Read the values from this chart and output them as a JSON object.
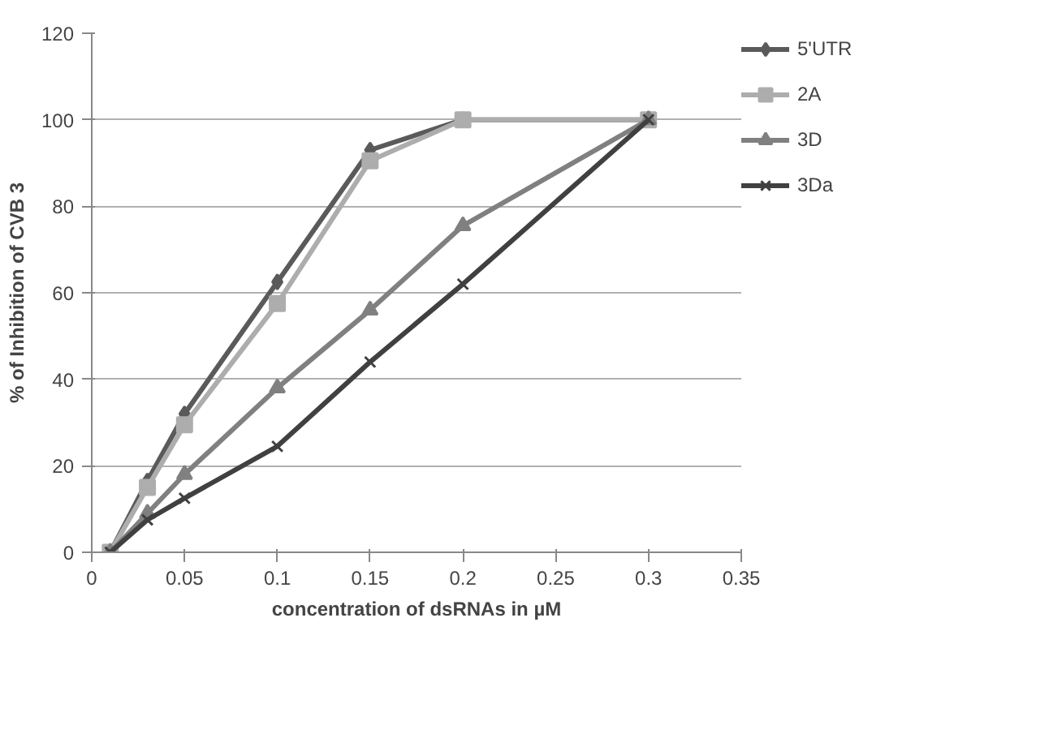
{
  "chart_data": {
    "type": "line",
    "xlabel": "concentration of dsRNAs in µM",
    "ylabel": "% of Inhibition of CVB 3",
    "x": [
      0.01,
      0.03,
      0.05,
      0.1,
      0.15,
      0.2,
      0.3
    ],
    "series": [
      {
        "name": "5'UTR",
        "color": "#5a5a5a",
        "marker": "diamond",
        "values": [
          0,
          16.5,
          32,
          62.5,
          93,
          100,
          100
        ]
      },
      {
        "name": "2A",
        "color": "#adadad",
        "marker": "square",
        "values": [
          0,
          15,
          29.5,
          57.5,
          90.5,
          100,
          100
        ]
      },
      {
        "name": "3D",
        "color": "#808080",
        "marker": "triangle",
        "values": [
          0,
          9,
          18,
          38,
          56,
          75.5,
          100
        ]
      },
      {
        "name": "3Da",
        "color": "#404040",
        "marker": "cross",
        "values": [
          0,
          7.5,
          12.5,
          24.5,
          44,
          62,
          100
        ]
      }
    ],
    "xlim": [
      0,
      0.35
    ],
    "xticks": [
      0,
      0.05,
      0.1,
      0.15,
      0.2,
      0.25,
      0.3,
      0.35
    ],
    "ylim": [
      0,
      120
    ],
    "yticks": [
      0,
      20,
      40,
      60,
      80,
      100,
      120
    ],
    "grid": "y",
    "legend": "right"
  }
}
